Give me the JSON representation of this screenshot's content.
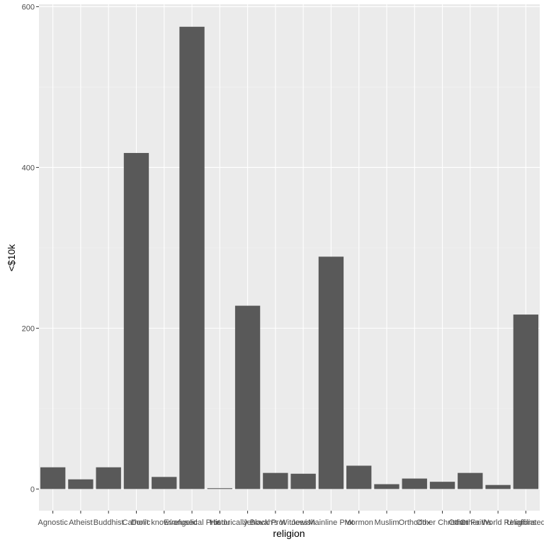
{
  "chart_data": {
    "type": "bar",
    "title": "",
    "xlabel": "religion",
    "ylabel": "<$10k",
    "categories": [
      "Agnostic",
      "Atheist",
      "Buddhist",
      "Catholic",
      "Don't know/refused",
      "Evangelical Prot",
      "Hindu",
      "Historically Black Prot",
      "Jehovah's Witness",
      "Jewish",
      "Mainline Prot",
      "Mormon",
      "Muslim",
      "Orthodox",
      "Other Christian",
      "Other Faiths",
      "Other World Religions",
      "Unaffiliated"
    ],
    "values": [
      27,
      12,
      27,
      418,
      15,
      575,
      1,
      228,
      20,
      19,
      289,
      29,
      6,
      13,
      9,
      20,
      5,
      217
    ],
    "ylim": [
      -27,
      603
    ],
    "yticks": [
      0,
      200,
      400,
      600
    ],
    "grid": true,
    "legend": "none"
  },
  "colors": {
    "panel_background": "#ebebeb",
    "grid_major": "#ffffff",
    "grid_minor": "#f5f5f5",
    "bar_fill": "#595959",
    "tick_text": "#4d4d4d",
    "tick_mark": "#333333",
    "axis_title": "#000000"
  }
}
